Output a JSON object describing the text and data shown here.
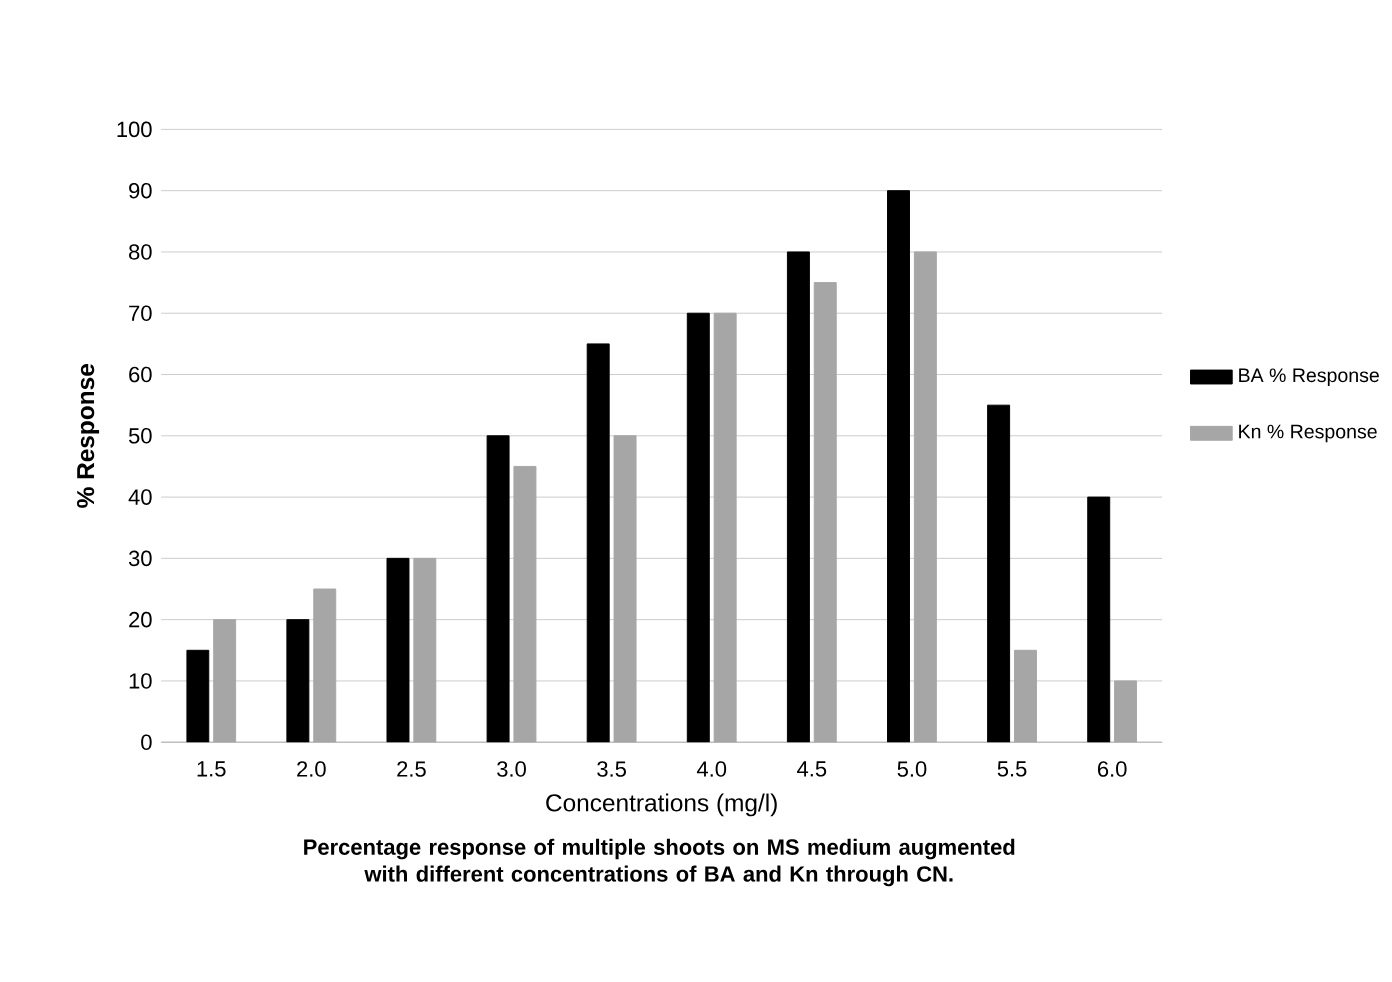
{
  "chart_data": {
    "type": "bar",
    "xlabel": "Concentrations (mg/l)",
    "ylabel": "% Response",
    "categories": [
      "1.5",
      "2.0",
      "2.5",
      "3.0",
      "3.5",
      "4.0",
      "4.5",
      "5.0",
      "5.5",
      "6.0"
    ],
    "series": [
      {
        "name": "BA % Response",
        "color": "#000000",
        "values": [
          15,
          20,
          30,
          50,
          65,
          70,
          80,
          90,
          55,
          40
        ]
      },
      {
        "name": "Kn % Response",
        "color": "#a6a6a6",
        "values": [
          20,
          25,
          30,
          45,
          50,
          70,
          75,
          80,
          15,
          10
        ]
      }
    ],
    "ylim": [
      0,
      100
    ],
    "yticks": [
      0,
      10,
      20,
      30,
      40,
      50,
      60,
      70,
      80,
      90,
      100
    ],
    "grid": "y",
    "legend": "right",
    "annotations": [
      "Percentage response of multiple shoots on MS medium augmented with different concentrations of BA and Kn through CN."
    ]
  }
}
